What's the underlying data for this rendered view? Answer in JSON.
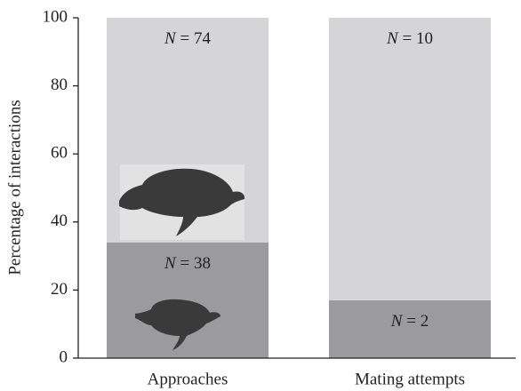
{
  "chart_data": {
    "type": "stacked_bar",
    "y_label": "Percentage of interactions",
    "categories": [
      "Approaches",
      "Mating attempts"
    ],
    "series": [
      {
        "color": "#9b9b9d",
        "values": [
          34,
          17
        ],
        "count_labels": [
          "N = 38",
          "N = 2"
        ]
      },
      {
        "color": "#d5d5d7",
        "values": [
          66,
          83
        ],
        "count_labels": [
          "N = 74",
          "N = 10"
        ]
      }
    ],
    "ylim": [
      0,
      100
    ],
    "yticks": [
      0,
      20,
      40,
      60,
      80,
      100
    ]
  }
}
